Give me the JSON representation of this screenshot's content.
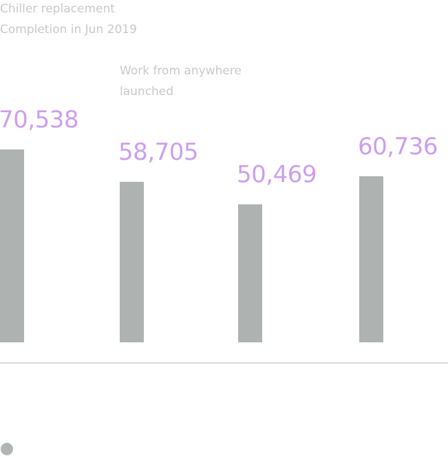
{
  "annotations": {
    "first": {
      "lines": [
        "Chiller replacement",
        "Completion in Jun 2019"
      ]
    },
    "second": {
      "lines": [
        "Work from anywhere",
        "launched"
      ]
    }
  },
  "legend": {
    "marker_color": "#b0b5b4"
  },
  "colors": {
    "bar": "#aeb2b1",
    "value_label": "#cc9eee",
    "baseline": "#d9d9d9",
    "annotation": "#c9c9c9"
  },
  "chart_data": {
    "type": "bar",
    "categories": [
      "",
      "",
      "",
      ""
    ],
    "values": [
      70538,
      58705,
      50469,
      60736
    ],
    "value_labels": [
      "70,538",
      "58,705",
      "50,469",
      "60,736"
    ],
    "title": "",
    "xlabel": "",
    "ylabel": "",
    "grid": false
  }
}
